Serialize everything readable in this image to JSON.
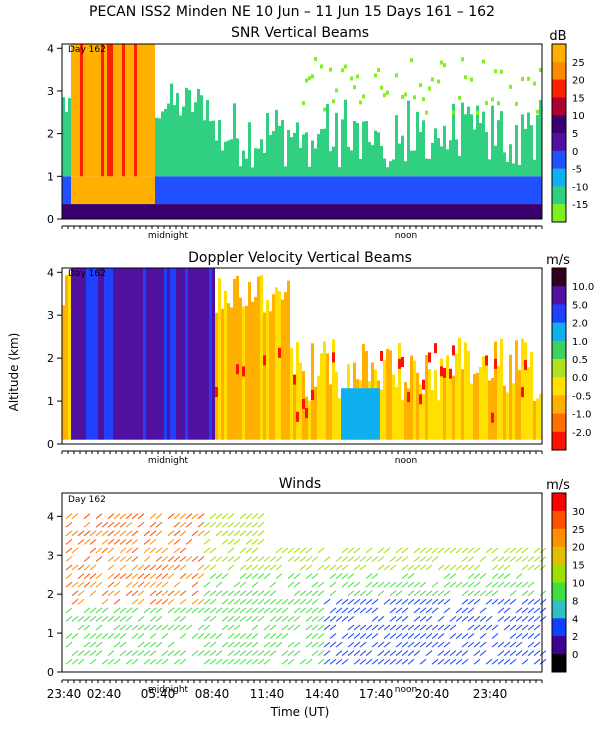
{
  "title": "PECAN ISS2 Minden NE  10 Jun – 11 Jun 15 Days 161 – 162",
  "shared_ylabel": "Altitude (km)",
  "shared_xlabel": "Time (UT)",
  "time_ticks": [
    "23:40",
    "02:40",
    "05:40",
    "08:40",
    "11:40",
    "14:40",
    "17:40",
    "20:40",
    "23:40"
  ],
  "marker_labels": {
    "midnight": "midnight",
    "noon": "noon"
  },
  "chart_data": [
    {
      "type": "heatmap",
      "title": "SNR Vertical Beams",
      "day_label": "Day 162",
      "ylabel": "Altitude (km)",
      "ylim": [
        0,
        4.1
      ],
      "y_ticks": [
        "0",
        "1",
        "2",
        "3",
        "4"
      ],
      "colorbar": {
        "unit": "dB",
        "labels": [
          "25",
          "20",
          "15",
          "10",
          "5",
          "0",
          "-5",
          "-10",
          "-15"
        ],
        "colors": [
          "#ffb000",
          "#ff8c00",
          "#ff2000",
          "#b00030",
          "#3a0070",
          "#5010a0",
          "#2050ff",
          "#10b0f0",
          "#30d080",
          "#80f020"
        ]
      }
    },
    {
      "type": "heatmap",
      "title": "Doppler Velocity Vertical Beams",
      "day_label": "Day 162",
      "ylabel": "Altitude (km)",
      "ylim": [
        0,
        4.1
      ],
      "y_ticks": [
        "0",
        "1",
        "2",
        "3",
        "4"
      ],
      "colorbar": {
        "unit": "m/s",
        "labels": [
          "10.0",
          "5.0",
          "2.0",
          "1.0",
          "0.5",
          "0.0",
          "-0.5",
          "-1.0",
          "-2.0"
        ],
        "colors": [
          "#300020",
          "#5010a0",
          "#2040ff",
          "#10b0f0",
          "#40d060",
          "#b0e020",
          "#ffe000",
          "#ffb000",
          "#ff7000",
          "#ff1000"
        ]
      }
    },
    {
      "type": "heatmap",
      "title": "Winds",
      "day_label": "Day 162",
      "ylabel": "Altitude (km)",
      "ylim": [
        0,
        4.6
      ],
      "y_ticks": [
        "0",
        "1",
        "2",
        "3",
        "4"
      ],
      "colorbar": {
        "unit": "m/s",
        "labels": [
          "30",
          "25",
          "20",
          "15",
          "10",
          "8",
          "4",
          "2",
          "0"
        ],
        "colors": [
          "#ff0000",
          "#ff5000",
          "#ff9000",
          "#e0c000",
          "#a0e000",
          "#40e040",
          "#30c0c0",
          "#1040ff",
          "#400090",
          "#000000"
        ]
      }
    }
  ]
}
